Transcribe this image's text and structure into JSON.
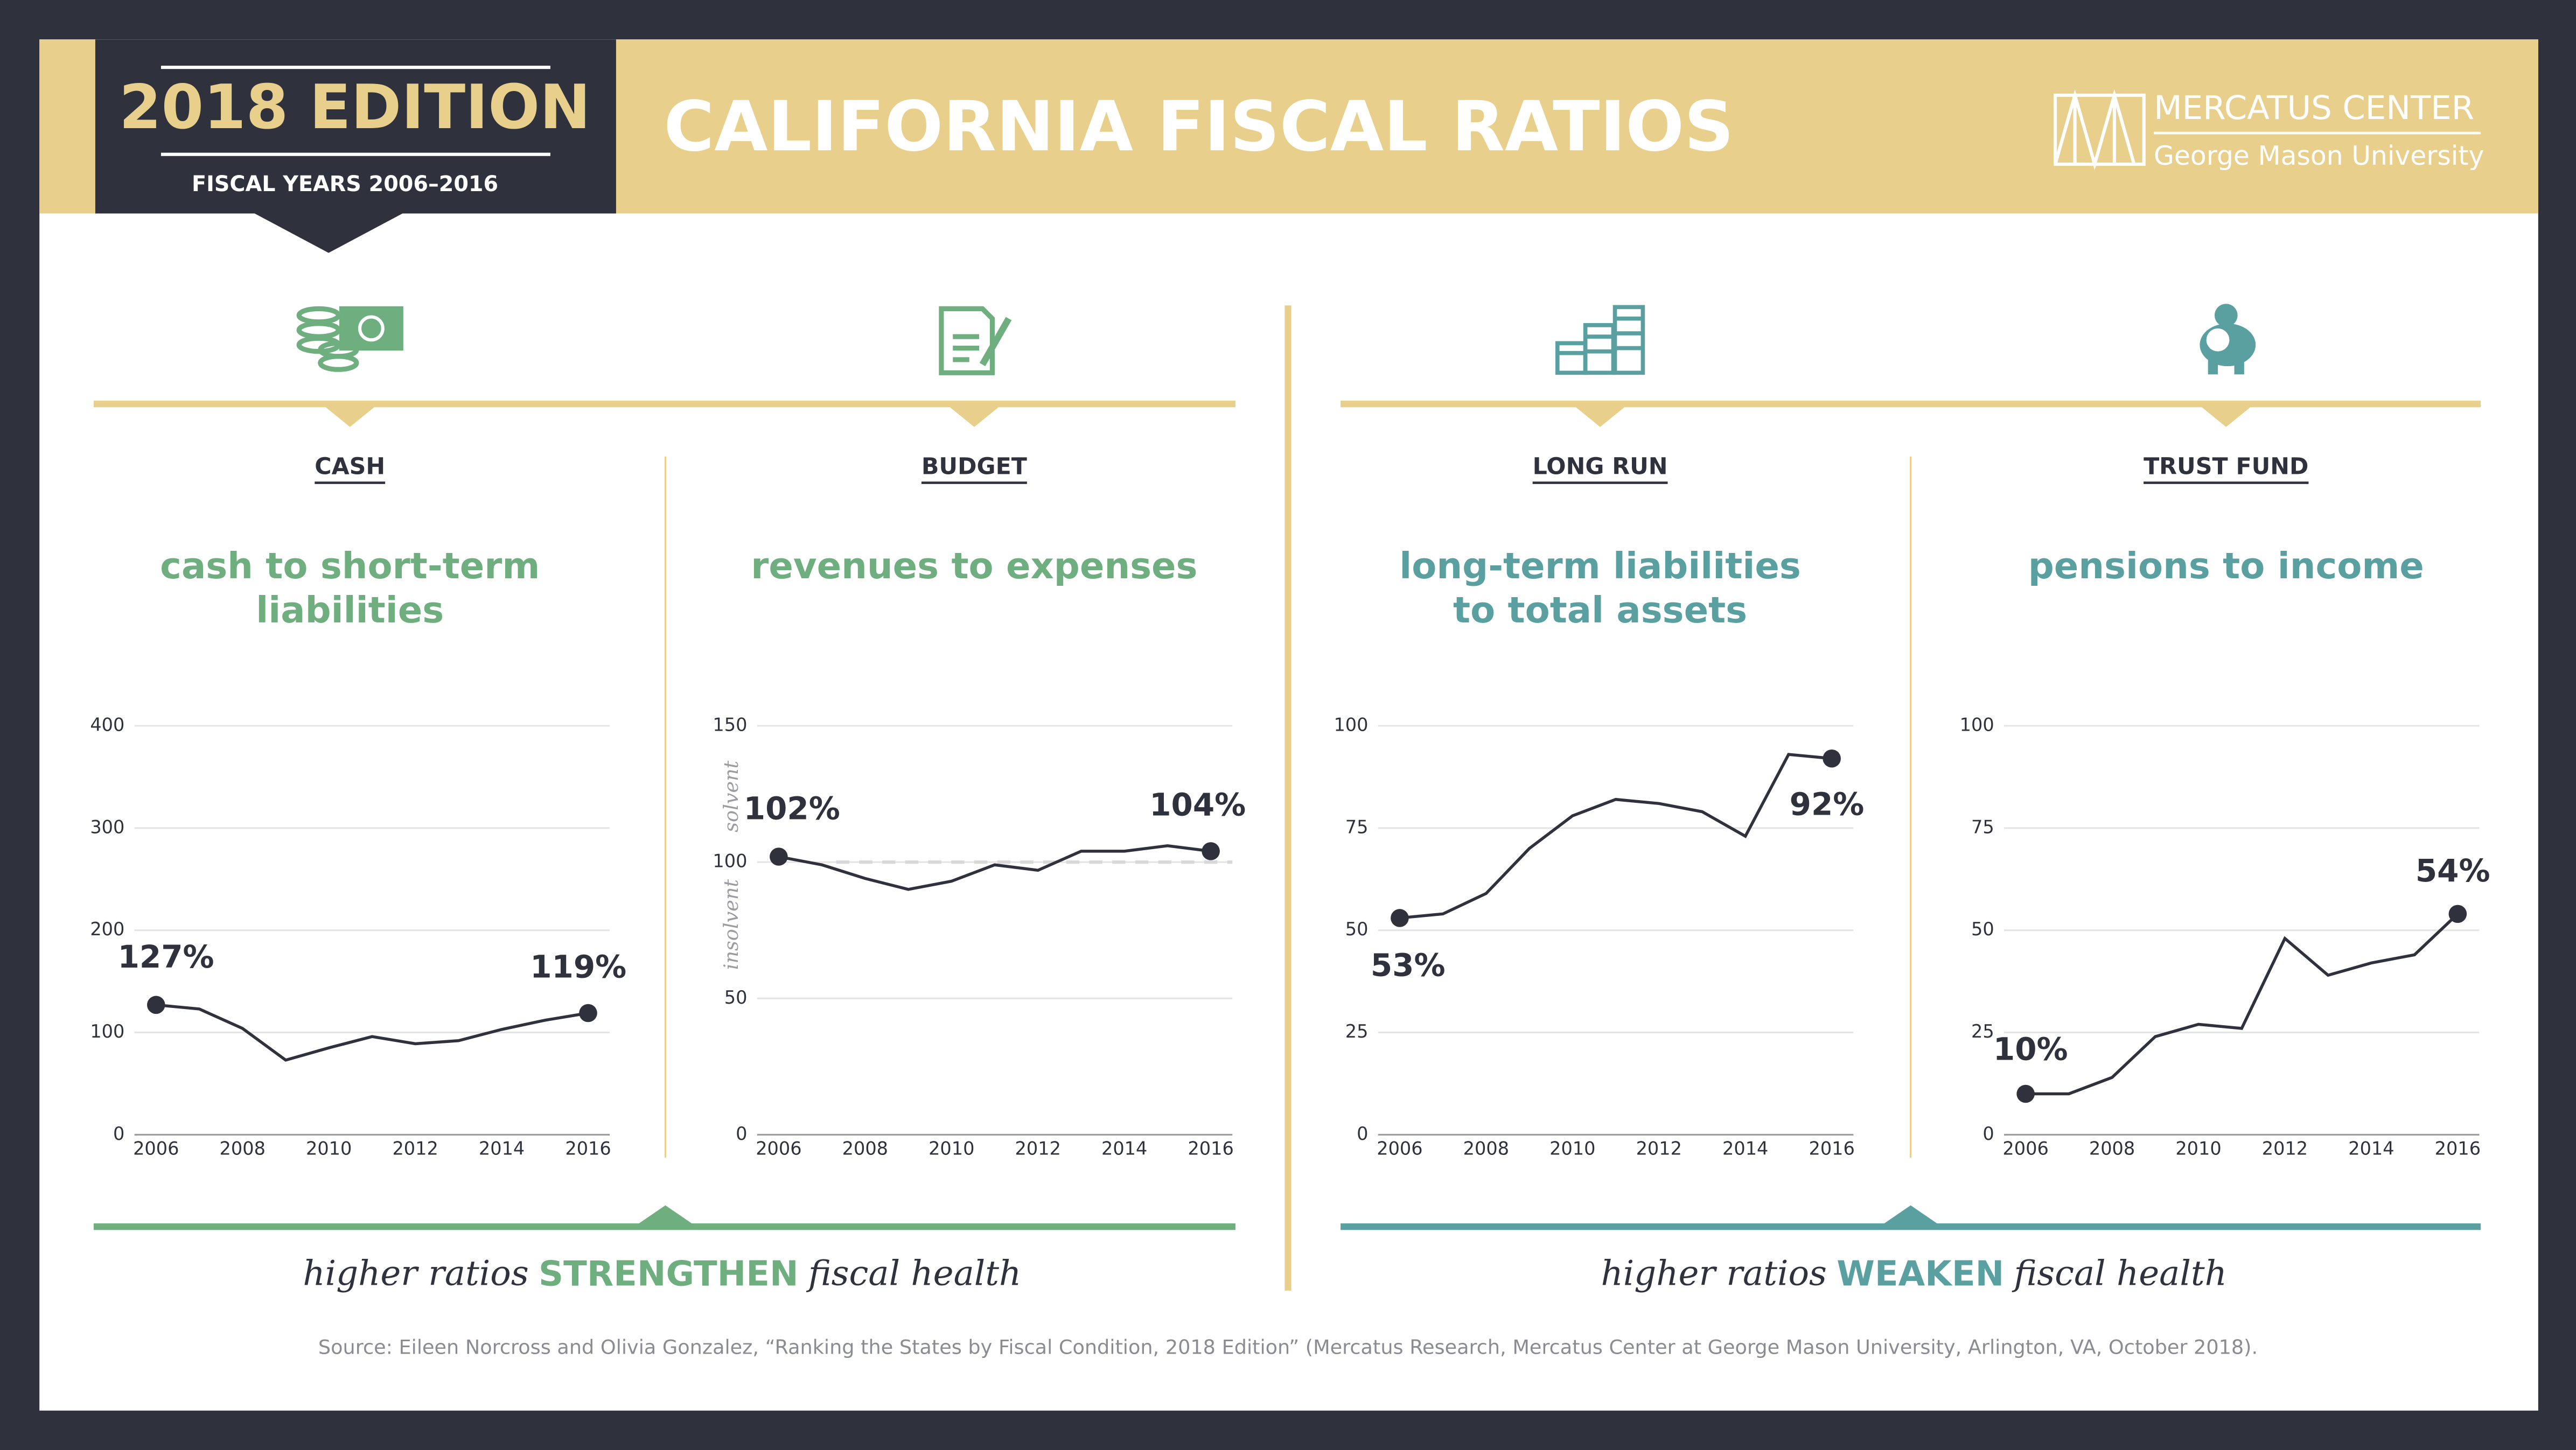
{
  "header": {
    "edition": "2018 EDITION",
    "years": "FISCAL YEARS 2006–2016",
    "title": "CALIFORNIA FISCAL RATIOS",
    "org": "MERCATUS CENTER",
    "university": "George Mason University"
  },
  "chart_data": [
    {
      "type": "line",
      "category": "CASH",
      "title": [
        "cash to short-term",
        "liabilities"
      ],
      "title_color": "#6fae7e",
      "x": [
        2006,
        2007,
        2008,
        2009,
        2010,
        2011,
        2012,
        2013,
        2014,
        2015,
        2016
      ],
      "values": [
        127,
        123,
        104,
        73,
        85,
        96,
        89,
        92,
        103,
        112,
        119
      ],
      "value_labels": [
        "127%",
        null,
        null,
        null,
        null,
        null,
        null,
        null,
        null,
        null,
        "119%"
      ],
      "color": "#2f323d",
      "xlim": [
        2005.5,
        2016.5
      ],
      "xticks": [
        2006,
        2008,
        2010,
        2012,
        2014,
        2016
      ],
      "ylim": [
        0,
        400
      ],
      "yticks": [
        0,
        100,
        200,
        300,
        400
      ],
      "grid": true
    },
    {
      "type": "line",
      "category": "BUDGET",
      "title": [
        "revenues to expenses"
      ],
      "title_color": "#6fae7e",
      "x": [
        2006,
        2007,
        2008,
        2009,
        2010,
        2011,
        2012,
        2013,
        2014,
        2015,
        2016
      ],
      "values": [
        102,
        99,
        94,
        90,
        93,
        99,
        97,
        104,
        104,
        106,
        104
      ],
      "value_labels": [
        "102%",
        null,
        null,
        null,
        null,
        null,
        null,
        null,
        null,
        null,
        "104%"
      ],
      "color": "#2f323d",
      "xlim": [
        2005.5,
        2016.5
      ],
      "xticks": [
        2006,
        2008,
        2010,
        2012,
        2014,
        2016
      ],
      "ylim": [
        0,
        150
      ],
      "yticks": [
        0,
        50,
        100,
        150
      ],
      "grid": true,
      "reference_line": 100,
      "annotations": [
        "solvent",
        "insolvent"
      ]
    },
    {
      "type": "line",
      "category": "LONG RUN",
      "title": [
        "long-term liabilities",
        "to total assets"
      ],
      "title_color": "#5aa0a0",
      "x": [
        2006,
        2007,
        2008,
        2009,
        2010,
        2011,
        2012,
        2013,
        2014,
        2015,
        2016
      ],
      "values": [
        53,
        54,
        59,
        70,
        78,
        82,
        81,
        79,
        73,
        93,
        92
      ],
      "value_labels": [
        "53%",
        null,
        null,
        null,
        null,
        null,
        null,
        null,
        null,
        null,
        "92%"
      ],
      "color": "#2f323d",
      "xlim": [
        2005.5,
        2016.5
      ],
      "xticks": [
        2006,
        2008,
        2010,
        2012,
        2014,
        2016
      ],
      "ylim": [
        0,
        100
      ],
      "yticks": [
        0,
        25,
        50,
        75,
        100
      ],
      "grid": true
    },
    {
      "type": "line",
      "category": "TRUST FUND",
      "title": [
        "pensions to income"
      ],
      "title_color": "#5aa0a0",
      "x": [
        2006,
        2007,
        2008,
        2009,
        2010,
        2011,
        2012,
        2013,
        2014,
        2015,
        2016
      ],
      "values": [
        10,
        10,
        14,
        24,
        27,
        26,
        48,
        39,
        42,
        44,
        54
      ],
      "value_labels": [
        "10%",
        null,
        null,
        null,
        null,
        null,
        null,
        null,
        null,
        null,
        "54%"
      ],
      "color": "#2f323d",
      "xlim": [
        2005.5,
        2016.5
      ],
      "xticks": [
        2006,
        2008,
        2010,
        2012,
        2014,
        2016
      ],
      "ylim": [
        0,
        100
      ],
      "yticks": [
        0,
        25,
        50,
        75,
        100
      ],
      "grid": true
    }
  ],
  "sections": [
    {
      "parts": [
        "higher ratios",
        "STRENGTHEN",
        "fiscal health"
      ],
      "color": "#6fae7e"
    },
    {
      "parts": [
        "higher ratios",
        "WEAKEN",
        "fiscal health"
      ],
      "color": "#5aa0a0"
    }
  ],
  "source": "Source: Eileen Norcross and Olivia Gonzalez, “Ranking the States by Fiscal Condition, 2018 Edition” (Mercatus Research, Mercatus Center at George Mason University, Arlington, VA, October 2018)."
}
